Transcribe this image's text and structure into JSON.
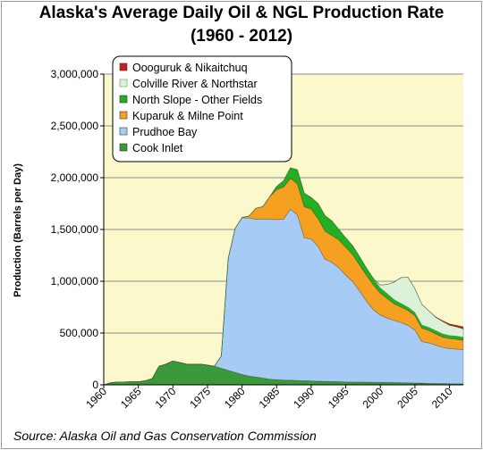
{
  "title_line1": "Alaska's Average Daily Oil & NGL Production Rate",
  "title_line2": "(1960 - 2012)",
  "ylabel": "Production (Barrels per Day)",
  "source": "Source: Alaska Oil and Gas Conservation Commission",
  "chart_data": {
    "type": "area",
    "stacked": true,
    "title": "Alaska's Average Daily Oil & NGL Production Rate (1960 - 2012)",
    "xlabel": "",
    "ylabel": "Production (Barrels per Day)",
    "xlim": [
      1960,
      2012
    ],
    "ylim": [
      0,
      3000000
    ],
    "y_ticks": [
      0,
      500000,
      1000000,
      1500000,
      2000000,
      2500000,
      3000000
    ],
    "y_tick_labels": [
      "0",
      "500,000",
      "1,000,000",
      "1,500,000",
      "2,000,000",
      "2,500,000",
      "3,000,000"
    ],
    "x_ticks": [
      1960,
      1965,
      1970,
      1975,
      1980,
      1985,
      1990,
      1995,
      2000,
      2005,
      2010
    ],
    "x_tick_labels": [
      "1960",
      "1965",
      "1970",
      "1975",
      "1980",
      "1985",
      "1990",
      "1995",
      "2000",
      "2005",
      "2010"
    ],
    "grid": "horizontal",
    "legend_position": "top-left",
    "x": [
      1960,
      1961,
      1962,
      1963,
      1964,
      1965,
      1966,
      1967,
      1968,
      1969,
      1970,
      1971,
      1972,
      1973,
      1974,
      1975,
      1976,
      1977,
      1978,
      1979,
      1980,
      1981,
      1982,
      1983,
      1984,
      1985,
      1986,
      1987,
      1988,
      1989,
      1990,
      1991,
      1992,
      1993,
      1994,
      1995,
      1996,
      1997,
      1998,
      1999,
      2000,
      2001,
      2002,
      2003,
      2004,
      2005,
      2006,
      2007,
      2008,
      2009,
      2010,
      2011,
      2012
    ],
    "series": [
      {
        "name": "Cook Inlet",
        "color": "#3a9a3a",
        "values": [
          0,
          20000,
          28000,
          28000,
          30000,
          30000,
          40000,
          60000,
          180000,
          200000,
          230000,
          215000,
          200000,
          200000,
          200000,
          190000,
          180000,
          160000,
          140000,
          120000,
          100000,
          85000,
          75000,
          65000,
          55000,
          50000,
          45000,
          45000,
          42000,
          40000,
          38000,
          35000,
          33000,
          32000,
          30000,
          28000,
          27000,
          27000,
          26000,
          25000,
          24000,
          24000,
          22000,
          20000,
          19000,
          18000,
          17000,
          15000,
          13000,
          12000,
          11000,
          10000,
          10000
        ]
      },
      {
        "name": "Prudhoe Bay",
        "color": "#a6cbf5",
        "values": [
          0,
          0,
          0,
          0,
          0,
          0,
          0,
          0,
          0,
          0,
          0,
          0,
          0,
          0,
          0,
          0,
          0,
          120000,
          1080000,
          1390000,
          1515000,
          1525000,
          1525000,
          1535000,
          1545000,
          1545000,
          1555000,
          1650000,
          1600000,
          1380000,
          1370000,
          1300000,
          1180000,
          1150000,
          1100000,
          1030000,
          970000,
          880000,
          780000,
          700000,
          650000,
          620000,
          600000,
          580000,
          555000,
          510000,
          400000,
          390000,
          370000,
          350000,
          340000,
          335000,
          330000
        ]
      },
      {
        "name": "Kuparuk & Milne Point",
        "color": "#f5a020",
        "values": [
          0,
          0,
          0,
          0,
          0,
          0,
          0,
          0,
          0,
          0,
          0,
          0,
          0,
          0,
          0,
          0,
          0,
          0,
          0,
          0,
          0,
          20000,
          105000,
          120000,
          215000,
          290000,
          310000,
          300000,
          300000,
          300000,
          290000,
          270000,
          270000,
          260000,
          270000,
          270000,
          260000,
          250000,
          250000,
          240000,
          210000,
          190000,
          160000,
          150000,
          145000,
          140000,
          130000,
          120000,
          110000,
          100000,
          95000,
          95000,
          90000
        ]
      },
      {
        "name": "North Slope - Other Fields",
        "color": "#22b022",
        "values": [
          0,
          0,
          0,
          0,
          0,
          0,
          0,
          0,
          0,
          0,
          0,
          0,
          0,
          0,
          0,
          0,
          0,
          0,
          0,
          0,
          0,
          0,
          0,
          0,
          0,
          30000,
          60000,
          100000,
          135000,
          130000,
          110000,
          145000,
          150000,
          140000,
          100000,
          90000,
          85000,
          80000,
          70000,
          60000,
          50000,
          45000,
          40000,
          35000,
          30000,
          30000,
          30000,
          30000,
          30000,
          30000,
          30000,
          30000,
          30000
        ]
      },
      {
        "name": "Colville River & Northstar",
        "color": "#ddf0d8",
        "values": [
          0,
          0,
          0,
          0,
          0,
          0,
          0,
          0,
          0,
          0,
          0,
          0,
          0,
          0,
          0,
          0,
          0,
          0,
          0,
          0,
          0,
          0,
          0,
          0,
          0,
          0,
          0,
          0,
          0,
          0,
          0,
          0,
          0,
          0,
          0,
          0,
          0,
          0,
          0,
          0,
          30000,
          90000,
          170000,
          250000,
          290000,
          230000,
          200000,
          160000,
          130000,
          120000,
          100000,
          90000,
          80000
        ]
      },
      {
        "name": "Oooguruk & Nikaitchuq",
        "color": "#cc1e1e",
        "values": [
          0,
          0,
          0,
          0,
          0,
          0,
          0,
          0,
          0,
          0,
          0,
          0,
          0,
          0,
          0,
          0,
          0,
          0,
          0,
          0,
          0,
          0,
          0,
          0,
          0,
          0,
          0,
          0,
          0,
          0,
          0,
          0,
          0,
          0,
          0,
          0,
          0,
          0,
          0,
          0,
          0,
          0,
          0,
          0,
          0,
          0,
          0,
          0,
          3000,
          8000,
          12000,
          15000,
          20000
        ]
      }
    ]
  }
}
